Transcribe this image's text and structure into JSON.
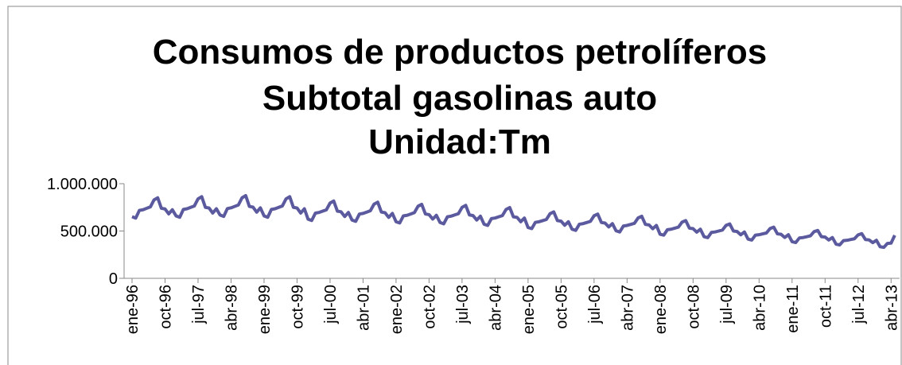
{
  "chart_data": {
    "type": "line",
    "title": [
      "Consumos de productos petrolíferos",
      "Subtotal gasolinas auto",
      "Unidad:Tm"
    ],
    "categories": [
      "ene-96",
      null,
      null,
      null,
      null,
      null,
      null,
      null,
      null,
      "oct-96",
      null,
      null,
      null,
      null,
      null,
      null,
      null,
      null,
      "jul-97",
      null,
      null,
      null,
      null,
      null,
      null,
      null,
      null,
      "abr-98",
      null,
      null,
      null,
      null,
      null,
      null,
      null,
      null,
      "ene-99",
      null,
      null,
      null,
      null,
      null,
      null,
      null,
      null,
      "oct-99",
      null,
      null,
      null,
      null,
      null,
      null,
      null,
      null,
      "jul-00",
      null,
      null,
      null,
      null,
      null,
      null,
      null,
      null,
      "abr-01",
      null,
      null,
      null,
      null,
      null,
      null,
      null,
      null,
      "ene-02",
      null,
      null,
      null,
      null,
      null,
      null,
      null,
      null,
      "oct-02",
      null,
      null,
      null,
      null,
      null,
      null,
      null,
      null,
      "jul-03",
      null,
      null,
      null,
      null,
      null,
      null,
      null,
      null,
      "abr-04",
      null,
      null,
      null,
      null,
      null,
      null,
      null,
      null,
      "ene-05",
      null,
      null,
      null,
      null,
      null,
      null,
      null,
      null,
      "oct-05",
      null,
      null,
      null,
      null,
      null,
      null,
      null,
      null,
      "jul-06",
      null,
      null,
      null,
      null,
      null,
      null,
      null,
      null,
      "abr-07",
      null,
      null,
      null,
      null,
      null,
      null,
      null,
      null,
      "ene-08",
      null,
      null,
      null,
      null,
      null,
      null,
      null,
      null,
      "oct-08",
      null,
      null,
      null,
      null,
      null,
      null,
      null,
      null,
      "jul-09",
      null,
      null,
      null,
      null,
      null,
      null,
      null,
      null,
      "abr-10",
      null,
      null,
      null,
      null,
      null,
      null,
      null,
      null,
      "ene-11",
      null,
      null,
      null,
      null,
      null,
      null,
      null,
      null,
      "oct-11",
      null,
      null,
      null,
      null,
      null,
      null,
      null,
      null,
      "jul-12",
      null,
      null,
      null,
      null,
      null,
      null,
      null,
      null,
      "abr-13",
      null
    ],
    "series": [
      {
        "color": "#5c5a9e",
        "values": [
          651000,
          636000,
          718000,
          725000,
          740000,
          755000,
          829000,
          851000,
          740000,
          733000,
          681000,
          725000,
          660000,
          645000,
          728000,
          735000,
          750000,
          765000,
          840000,
          863000,
          750000,
          743000,
          690000,
          735000,
          669000,
          654000,
          737000,
          745000,
          760000,
          775000,
          851000,
          874000,
          760000,
          752000,
          699000,
          745000,
          660000,
          645000,
          728000,
          735000,
          750000,
          765000,
          840000,
          863000,
          750000,
          743000,
          690000,
          735000,
          625000,
          611000,
          689000,
          696000,
          710000,
          724000,
          795000,
          817000,
          710000,
          703000,
          653000,
          696000,
          616000,
          602000,
          679000,
          686000,
          700000,
          714000,
          784000,
          805000,
          700000,
          693000,
          644000,
          686000,
          598000,
          585000,
          660000,
          666000,
          680000,
          694000,
          762000,
          782000,
          680000,
          673000,
          626000,
          666000,
          590000,
          576000,
          650000,
          657000,
          670000,
          683000,
          750000,
          771000,
          670000,
          663000,
          616000,
          657000,
          572000,
          559000,
          631000,
          637000,
          650000,
          663000,
          728000,
          748000,
          650000,
          644000,
          598000,
          637000,
          537000,
          525000,
          592000,
          598000,
          610000,
          622000,
          683000,
          702000,
          610000,
          604000,
          561000,
          598000,
          519000,
          507000,
          572000,
          578000,
          590000,
          602000,
          661000,
          679000,
          590000,
          584000,
          543000,
          578000,
          502000,
          490000,
          553000,
          559000,
          570000,
          581000,
          638000,
          656000,
          570000,
          564000,
          524000,
          559000,
          466000,
          456000,
          514000,
          519000,
          530000,
          541000,
          594000,
          610000,
          530000,
          525000,
          488000,
          519000,
          440000,
          430000,
          485000,
          490000,
          500000,
          510000,
          560000,
          575000,
          500000,
          495000,
          460000,
          490000,
          414000,
          404000,
          456000,
          461000,
          470000,
          479000,
          526000,
          541000,
          470000,
          465000,
          432000,
          461000,
          387000,
          378000,
          427000,
          431000,
          440000,
          449000,
          493000,
          506000,
          440000,
          436000,
          405000,
          431000,
          361000,
          353000,
          398000,
          402000,
          410000,
          418000,
          459000,
          472000,
          410000,
          406000,
          377000,
          402000,
          334000,
          327000,
          369000,
          372000,
          455000
        ]
      }
    ],
    "ylim": [
      0,
      1000000
    ],
    "yticks": [
      0,
      {
        "value": 500000,
        "label": "500.000"
      },
      {
        "value": 1000000,
        "label": "1.000.000"
      }
    ]
  }
}
